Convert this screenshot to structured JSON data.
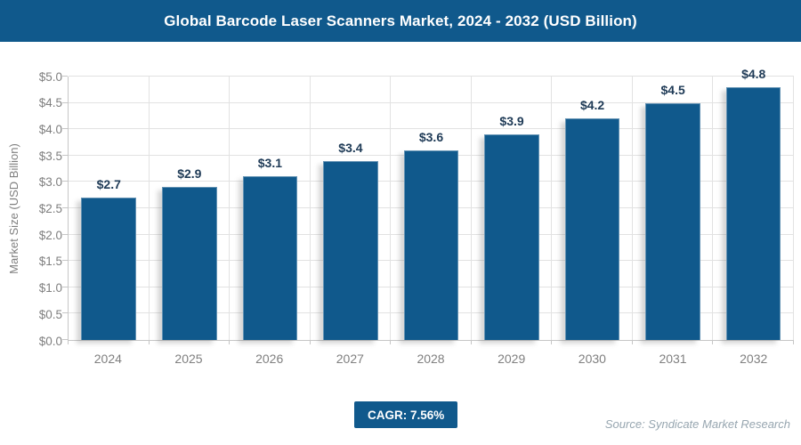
{
  "header": {
    "title": "Global Barcode Laser Scanners Market, 2024 - 2032 (USD Billion)"
  },
  "chart_data": {
    "type": "bar",
    "title": "Global Barcode Laser Scanners Market, 2024 - 2032 (USD Billion)",
    "categories": [
      "2024",
      "2025",
      "2026",
      "2027",
      "2028",
      "2029",
      "2030",
      "2031",
      "2032"
    ],
    "values": [
      2.7,
      2.9,
      3.1,
      3.4,
      3.6,
      3.9,
      4.2,
      4.5,
      4.8
    ],
    "value_labels": [
      "$2.7",
      "$2.9",
      "$3.1",
      "$3.4",
      "$3.6",
      "$3.9",
      "$4.2",
      "$4.5",
      "$4.8"
    ],
    "xlabel": "",
    "ylabel": "Market Size (USD Billion)",
    "ylim": [
      0,
      5
    ],
    "ytick_step": 0.5,
    "ytick_labels": [
      "$0.0",
      "$0.5",
      "$1.0",
      "$1.5",
      "$2.0",
      "$2.5",
      "$3.0",
      "$3.5",
      "$4.0",
      "$4.5",
      "$5.0"
    ],
    "grid": true,
    "legend_position": "none"
  },
  "footer": {
    "cagr_label": "CAGR: 7.56%",
    "source": "Source: Syndicate Market Research"
  },
  "colors": {
    "brand_blue": "#10598c",
    "bar": "#10598c",
    "value_label": "#1e3a56",
    "axis_text": "#7f7f7f",
    "gridline": "#e2e2e2",
    "axis_line": "#c6c6c6",
    "source_text": "#97a6b0"
  }
}
